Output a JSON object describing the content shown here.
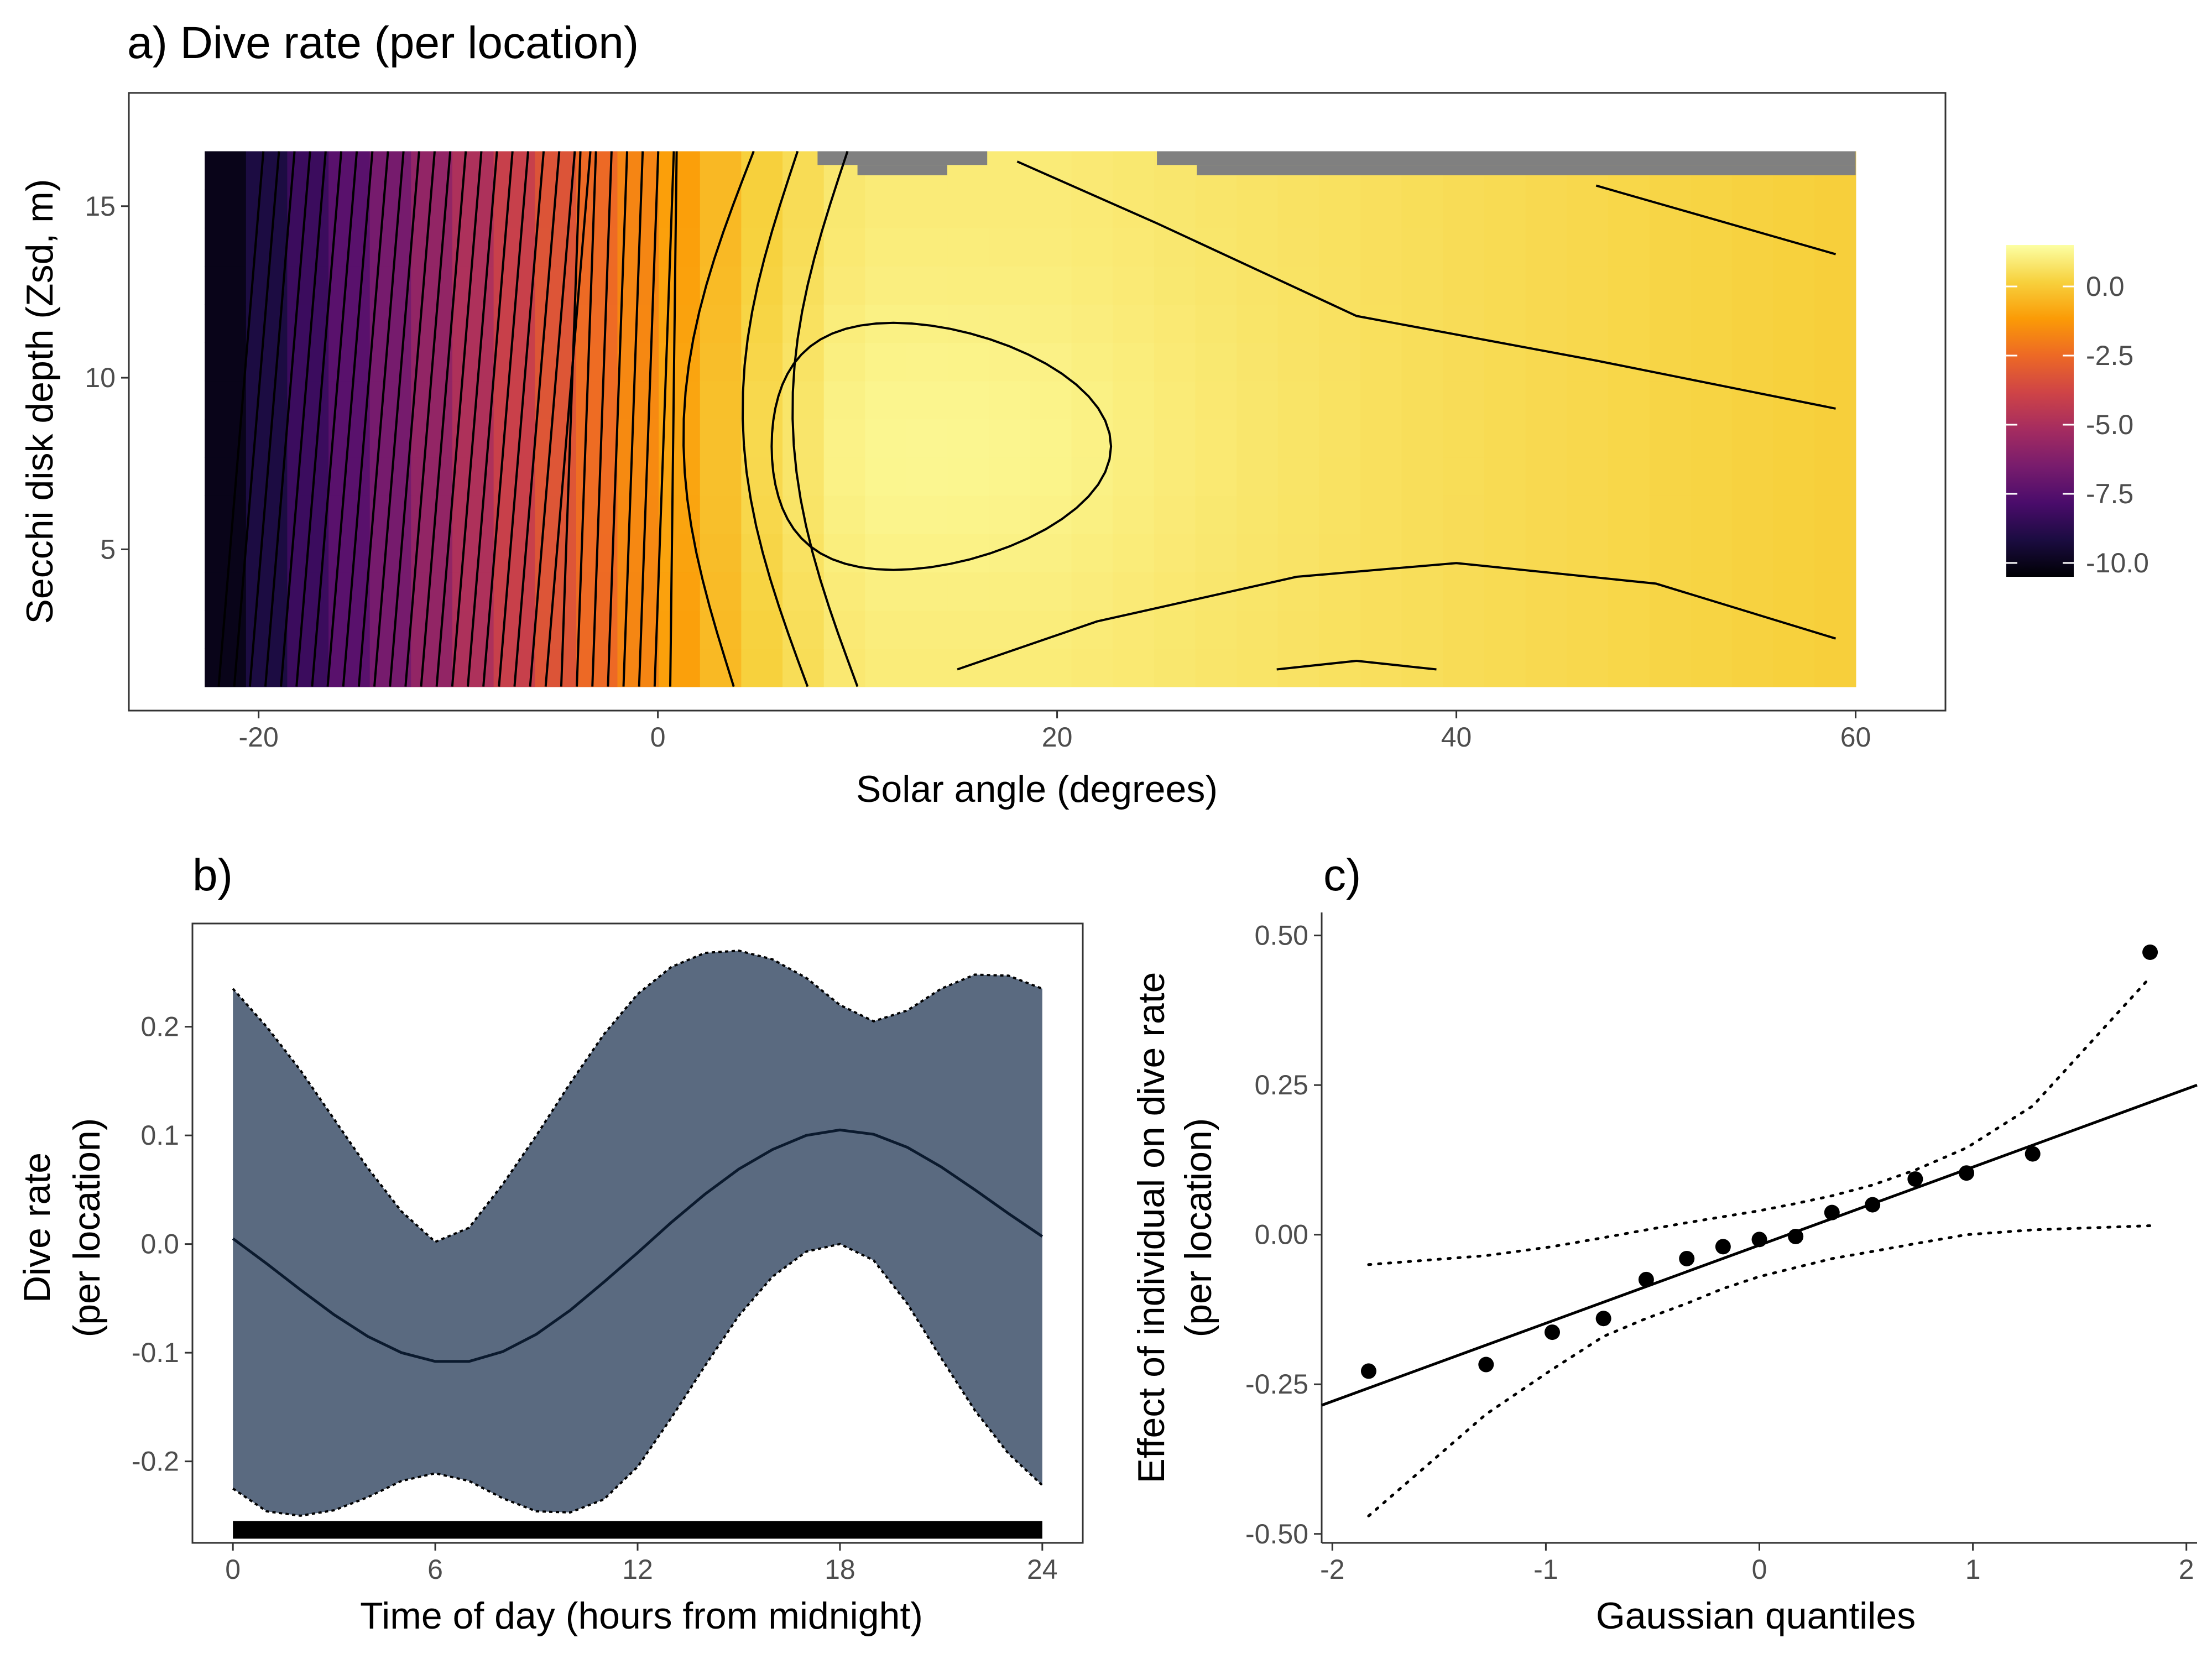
{
  "chart_data": [
    {
      "type": "heatmap",
      "title": "a) Dive rate (per location)",
      "xlabel": "Solar angle (degrees)",
      "ylabel": "Secchi disk depth (Zsd, m)",
      "xlim": [
        -26.5,
        64.5
      ],
      "ylim": [
        0.3,
        18.3
      ],
      "xticks": [
        "-20",
        "0",
        "20",
        "40",
        "60"
      ],
      "yticks": [
        "5",
        "10",
        "15"
      ],
      "grid": false,
      "data_extent": {
        "x": [
          -22.7,
          60
        ],
        "y": [
          1.0,
          16.6
        ]
      },
      "no_data_regions": [
        {
          "x": [
            8,
            16.5
          ],
          "y": [
            16.2,
            16.6
          ]
        },
        {
          "x": [
            10,
            14.5
          ],
          "y": [
            15.9,
            16.2
          ]
        },
        {
          "x": [
            25,
            60
          ],
          "y": [
            16.2,
            16.6
          ]
        },
        {
          "x": [
            27,
            60
          ],
          "y": [
            15.9,
            16.2
          ]
        }
      ],
      "legend": {
        "placement": "right",
        "colorscale": "inferno",
        "range": [
          -10.5,
          1.5
        ],
        "ticks": [
          "0.0",
          "-2.5",
          "-5.0",
          "-7.5",
          "-10.0"
        ],
        "colors": [
          "#000004",
          "#1b0c41",
          "#4a0c6b",
          "#781c6d",
          "#a52c60",
          "#cf4446",
          "#ed6925",
          "#fb9b06",
          "#f7d13d",
          "#fcffa4"
        ]
      },
      "na_color": "#808080",
      "surface": {
        "peak": {
          "x": 13,
          "y": 8,
          "value": 1.2
        },
        "value_at_x": [
          {
            "x": -22.7,
            "value": -10.5
          },
          {
            "x": -20,
            "value": -9.3
          },
          {
            "x": -15,
            "value": -7.2
          },
          {
            "x": -10,
            "value": -5.2
          },
          {
            "x": -5,
            "value": -3.2
          },
          {
            "x": 0,
            "value": -1.4
          },
          {
            "x": 5,
            "value": 0.1
          },
          {
            "x": 10,
            "value": 0.9
          },
          {
            "x": 20,
            "value": 0.9
          },
          {
            "x": 40,
            "value": 0.5
          },
          {
            "x": 60,
            "value": 0.1
          }
        ]
      }
    },
    {
      "type": "line",
      "title": "b)",
      "xlabel": "Time of day (hours from midnight)",
      "ylabel": [
        "Dive rate",
        "(per location)"
      ],
      "xlim": [
        -1.2,
        25.2
      ],
      "ylim": [
        -0.275,
        0.295
      ],
      "xticks": [
        "0",
        "6",
        "12",
        "18",
        "24"
      ],
      "yticks": [
        "-0.2",
        "-0.1",
        "0.0",
        "0.1",
        "0.2"
      ],
      "grid": false,
      "band_color": "#5a6a80",
      "rug_y": -0.263,
      "x": [
        0,
        1,
        2,
        3,
        4,
        5,
        6,
        7,
        8,
        9,
        10,
        11,
        12,
        13,
        14,
        15,
        16,
        17,
        18,
        19,
        20,
        21,
        22,
        23,
        24
      ],
      "fit": [
        0.005,
        -0.018,
        -0.042,
        -0.065,
        -0.085,
        -0.1,
        -0.108,
        -0.108,
        -0.099,
        -0.083,
        -0.061,
        -0.035,
        -0.008,
        0.02,
        0.046,
        0.069,
        0.087,
        0.1,
        0.105,
        0.101,
        0.089,
        0.071,
        0.05,
        0.028,
        0.007
      ],
      "upper": [
        0.235,
        0.2,
        0.16,
        0.115,
        0.07,
        0.03,
        0.002,
        0.015,
        0.055,
        0.1,
        0.148,
        0.193,
        0.23,
        0.255,
        0.268,
        0.27,
        0.262,
        0.245,
        0.22,
        0.205,
        0.215,
        0.235,
        0.248,
        0.247,
        0.235
      ],
      "lower": [
        -0.225,
        -0.246,
        -0.25,
        -0.245,
        -0.233,
        -0.218,
        -0.211,
        -0.218,
        -0.234,
        -0.246,
        -0.247,
        -0.235,
        -0.205,
        -0.16,
        -0.112,
        -0.066,
        -0.03,
        -0.007,
        0.0,
        -0.015,
        -0.055,
        -0.105,
        -0.153,
        -0.193,
        -0.222
      ]
    },
    {
      "type": "scatter",
      "title": "c)",
      "xlabel": "Gaussian quantiles",
      "ylabel": [
        "Effect of individual on dive rate",
        "(per location)"
      ],
      "xlim": [
        -2.05,
        2.05
      ],
      "ylim": [
        -0.515,
        0.52
      ],
      "xticks": [
        "-2",
        "-1",
        "0",
        "1",
        "2"
      ],
      "yticks": [
        "0.50",
        "0.25",
        "0.00",
        "-0.25",
        "-0.50"
      ],
      "grid": false,
      "x": [
        -1.83,
        -1.28,
        -0.97,
        -0.73,
        -0.53,
        -0.34,
        -0.17,
        0.0,
        0.17,
        0.34,
        0.53,
        0.73,
        0.97,
        1.28,
        1.83
      ],
      "y": [
        -0.228,
        -0.217,
        -0.163,
        -0.14,
        -0.075,
        -0.04,
        -0.02,
        -0.008,
        -0.003,
        0.037,
        0.05,
        0.093,
        0.103,
        0.135,
        0.472
      ],
      "reference_line": {
        "x": [
          -2.05,
          2.05
        ],
        "y": [
          -0.285,
          0.25
        ]
      },
      "envelope": {
        "x": [
          -1.83,
          -1.28,
          -0.97,
          -0.73,
          -0.53,
          -0.34,
          -0.17,
          0.0,
          0.17,
          0.34,
          0.53,
          0.73,
          0.97,
          1.28,
          1.83
        ],
        "upper": [
          -0.05,
          -0.035,
          -0.02,
          -0.005,
          0.008,
          0.02,
          0.03,
          0.04,
          0.052,
          0.065,
          0.083,
          0.108,
          0.145,
          0.215,
          0.43
        ],
        "lower": [
          -0.47,
          -0.3,
          -0.225,
          -0.17,
          -0.14,
          -0.115,
          -0.09,
          -0.07,
          -0.055,
          -0.04,
          -0.028,
          -0.015,
          0.0,
          0.008,
          0.015
        ]
      }
    }
  ]
}
